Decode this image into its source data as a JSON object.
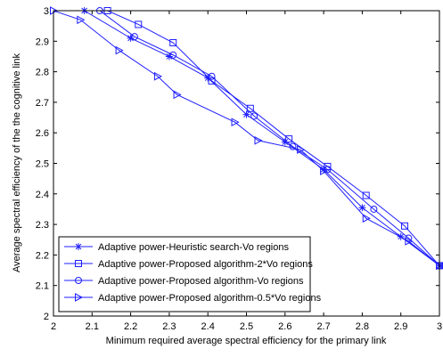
{
  "chart_data": {
    "type": "line",
    "title": "",
    "xlabel": "Minimum required average spectral efficiency for the primary link",
    "ylabel": "Average spectral efficiency of the the cognitive link",
    "xlim": [
      2,
      3
    ],
    "ylim": [
      2,
      3
    ],
    "x_ticks": [
      "2",
      "2.1",
      "2.2",
      "2.3",
      "2.4",
      "2.5",
      "2.6",
      "2.7",
      "2.8",
      "2.9",
      "3"
    ],
    "y_ticks": [
      "2",
      "2.1",
      "2.2",
      "2.3",
      "2.4",
      "2.5",
      "2.6",
      "2.7",
      "2.8",
      "2.9",
      "3"
    ],
    "grid": false,
    "legend_position": "bottom-left",
    "line_color": "#1f1fff",
    "series": [
      {
        "name": "Adaptive power-Heuristic search-Vo regions",
        "marker": "star",
        "x": [
          2.08,
          2.2,
          2.3,
          2.4,
          2.5,
          2.6,
          2.7,
          2.8,
          2.9,
          3.0
        ],
        "y": [
          3.0,
          2.91,
          2.85,
          2.78,
          2.66,
          2.57,
          2.48,
          2.355,
          2.26,
          2.165
        ]
      },
      {
        "name": "Adaptive power-Proposed algorithm-2*Vo regions",
        "marker": "square",
        "x": [
          2.14,
          2.22,
          2.31,
          2.41,
          2.51,
          2.61,
          2.71,
          2.81,
          2.91,
          3.0
        ],
        "y": [
          3.0,
          2.955,
          2.895,
          2.77,
          2.68,
          2.58,
          2.49,
          2.395,
          2.295,
          2.165
        ]
      },
      {
        "name": "Adaptive power-Proposed algorithm-Vo regions",
        "marker": "circle",
        "x": [
          2.12,
          2.21,
          2.31,
          2.41,
          2.52,
          2.62,
          2.71,
          2.83,
          2.92,
          3.0
        ],
        "y": [
          3.0,
          2.915,
          2.855,
          2.785,
          2.655,
          2.555,
          2.48,
          2.35,
          2.255,
          2.165
        ]
      },
      {
        "name": "Adaptive power-Proposed algorithm-0.5*Vo regions",
        "marker": "triangle-right",
        "x": [
          2.0,
          2.07,
          2.17,
          2.27,
          2.32,
          2.47,
          2.53,
          2.64,
          2.7,
          2.81,
          2.92,
          3.0
        ],
        "y": [
          3.0,
          2.97,
          2.87,
          2.785,
          2.725,
          2.635,
          2.575,
          2.545,
          2.475,
          2.32,
          2.245,
          2.165
        ]
      }
    ]
  }
}
